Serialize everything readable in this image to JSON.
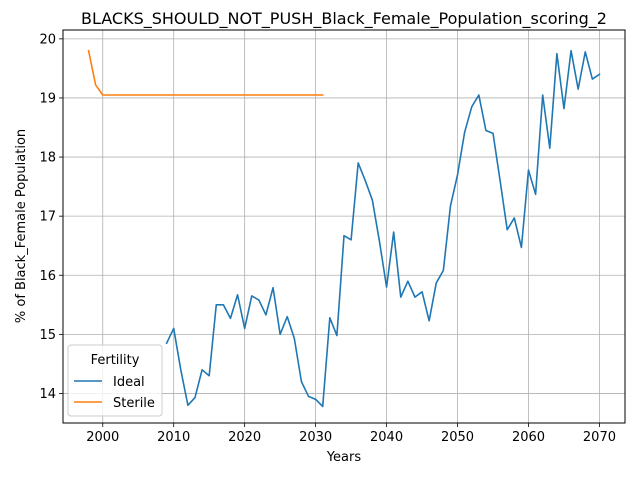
{
  "chart_data": {
    "type": "line",
    "title": "BLACKS_SHOULD_NOT_PUSH_Black_Female_Population_scoring_2",
    "xlabel": "Years",
    "ylabel": "% of Black_Female Population",
    "xlim": [
      1994.4,
      2073.6
    ],
    "ylim": [
      13.5,
      20.15
    ],
    "xticks": [
      2000,
      2010,
      2020,
      2030,
      2040,
      2050,
      2060,
      2070
    ],
    "yticks": [
      14,
      15,
      16,
      17,
      18,
      19,
      20
    ],
    "grid": true,
    "legend": {
      "title": "Fertility",
      "placement": "lower-left"
    },
    "series": [
      {
        "name": "Ideal",
        "color": "#1f77b4",
        "x": [
          2009,
          2010,
          2011,
          2012,
          2013,
          2014,
          2015,
          2016,
          2017,
          2018,
          2019,
          2020,
          2021,
          2022,
          2023,
          2024,
          2025,
          2026,
          2027,
          2028,
          2029,
          2030,
          2031,
          2032,
          2033,
          2034,
          2035,
          2036,
          2037,
          2038,
          2039,
          2040,
          2041,
          2042,
          2043,
          2044,
          2045,
          2046,
          2047,
          2048,
          2049,
          2050,
          2051,
          2052,
          2053,
          2054,
          2055,
          2056,
          2057,
          2058,
          2059,
          2060,
          2061,
          2062,
          2063,
          2064,
          2065,
          2066,
          2067,
          2068,
          2069,
          2070
        ],
        "y": [
          14.85,
          15.1,
          14.4,
          13.8,
          13.93,
          14.4,
          14.3,
          15.5,
          15.5,
          15.27,
          15.67,
          15.1,
          15.65,
          15.58,
          15.33,
          15.79,
          15.0,
          15.3,
          14.93,
          14.2,
          13.95,
          13.9,
          13.78,
          15.28,
          14.98,
          16.67,
          16.6,
          17.9,
          17.6,
          17.27,
          16.57,
          15.8,
          16.73,
          15.63,
          15.9,
          15.63,
          15.72,
          15.23,
          15.87,
          16.08,
          17.17,
          17.7,
          18.42,
          18.85,
          19.05,
          18.45,
          18.4,
          17.6,
          16.77,
          16.97,
          16.47,
          17.78,
          17.37,
          19.05,
          18.15,
          19.75,
          18.82,
          19.8,
          19.15,
          19.78,
          19.32,
          19.4
        ]
      },
      {
        "name": "Sterile",
        "color": "#ff7f0e",
        "x": [
          1998,
          1999,
          2000,
          2031
        ],
        "y": [
          19.8,
          19.22,
          19.05,
          19.05
        ]
      }
    ]
  }
}
